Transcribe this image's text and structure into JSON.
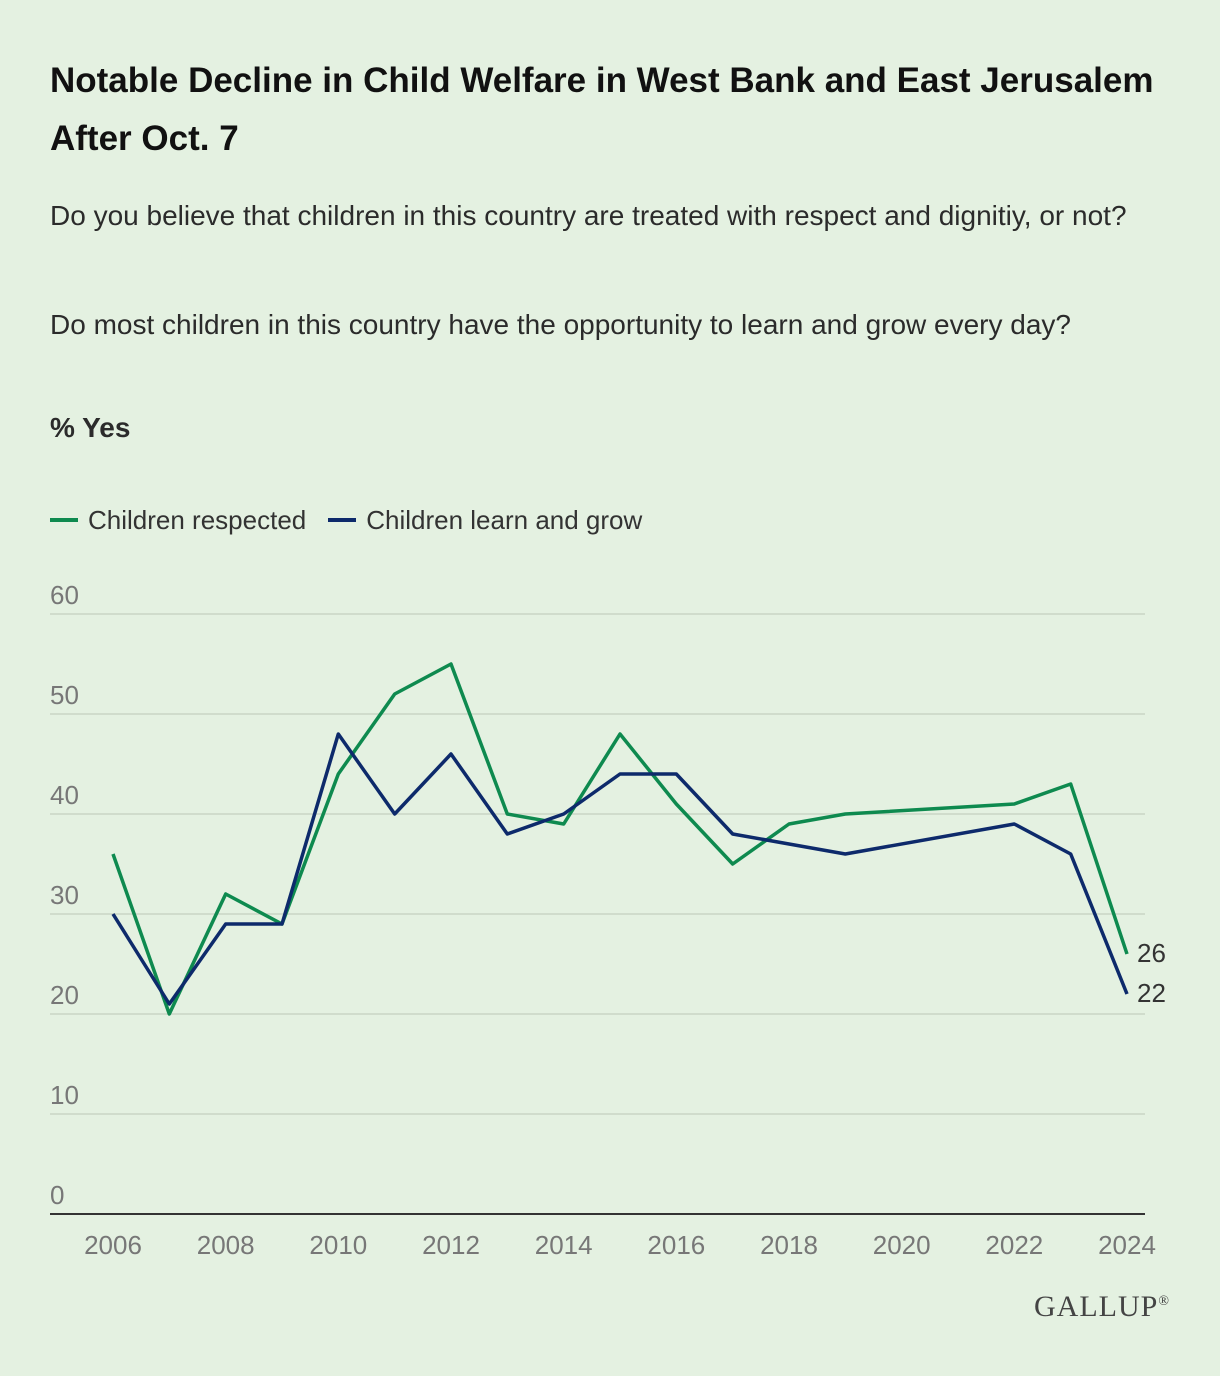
{
  "title": "Notable Decline in Child Welfare in West Bank and East Jerusalem After Oct. 7",
  "subtitle_lines": [
    "Do you believe that children in this country are treated with respect and dignitiy, or not?",
    "Do most children in this country have the opportunity to learn and grow every day?"
  ],
  "unit_label": "% Yes",
  "brand": "GALLUP",
  "brand_mark": "®",
  "chart_data": {
    "type": "line",
    "title": "Notable Decline in Child Welfare in West Bank and East Jerusalem After Oct. 7",
    "ylabel": "% Yes",
    "xlabel": "",
    "ylim": [
      0,
      60
    ],
    "yticks": [
      0,
      10,
      20,
      30,
      40,
      50,
      60
    ],
    "xlim": [
      2006,
      2024
    ],
    "xticks": [
      2006,
      2008,
      2010,
      2012,
      2014,
      2016,
      2018,
      2020,
      2022,
      2024
    ],
    "grid": true,
    "legend_position": "top-left",
    "series": [
      {
        "name": "Children respected",
        "color": "#0e8a4f",
        "points": [
          {
            "x": 2006,
            "y": 36
          },
          {
            "x": 2007,
            "y": 20
          },
          {
            "x": 2008,
            "y": 32
          },
          {
            "x": 2009,
            "y": 29
          },
          {
            "x": 2010,
            "y": 44
          },
          {
            "x": 2011,
            "y": 52
          },
          {
            "x": 2012,
            "y": 55
          },
          {
            "x": 2013,
            "y": 40
          },
          {
            "x": 2014,
            "y": 39
          },
          {
            "x": 2015,
            "y": 48
          },
          {
            "x": 2016,
            "y": 41
          },
          {
            "x": 2017,
            "y": 35
          },
          {
            "x": 2018,
            "y": 39
          },
          {
            "x": 2019,
            "y": 40
          },
          {
            "x": 2022,
            "y": 41
          },
          {
            "x": 2023,
            "y": 43
          },
          {
            "x": 2024,
            "y": 26
          }
        ],
        "end_label": "26"
      },
      {
        "name": "Children learn and grow",
        "color": "#0d2a6b",
        "points": [
          {
            "x": 2006,
            "y": 30
          },
          {
            "x": 2007,
            "y": 21
          },
          {
            "x": 2008,
            "y": 29
          },
          {
            "x": 2009,
            "y": 29
          },
          {
            "x": 2010,
            "y": 48
          },
          {
            "x": 2011,
            "y": 40
          },
          {
            "x": 2012,
            "y": 46
          },
          {
            "x": 2013,
            "y": 38
          },
          {
            "x": 2014,
            "y": 40
          },
          {
            "x": 2015,
            "y": 44
          },
          {
            "x": 2016,
            "y": 44
          },
          {
            "x": 2017,
            "y": 38
          },
          {
            "x": 2018,
            "y": 37
          },
          {
            "x": 2019,
            "y": 36
          },
          {
            "x": 2022,
            "y": 39
          },
          {
            "x": 2023,
            "y": 36
          },
          {
            "x": 2024,
            "y": 22
          }
        ],
        "end_label": "22"
      }
    ]
  }
}
